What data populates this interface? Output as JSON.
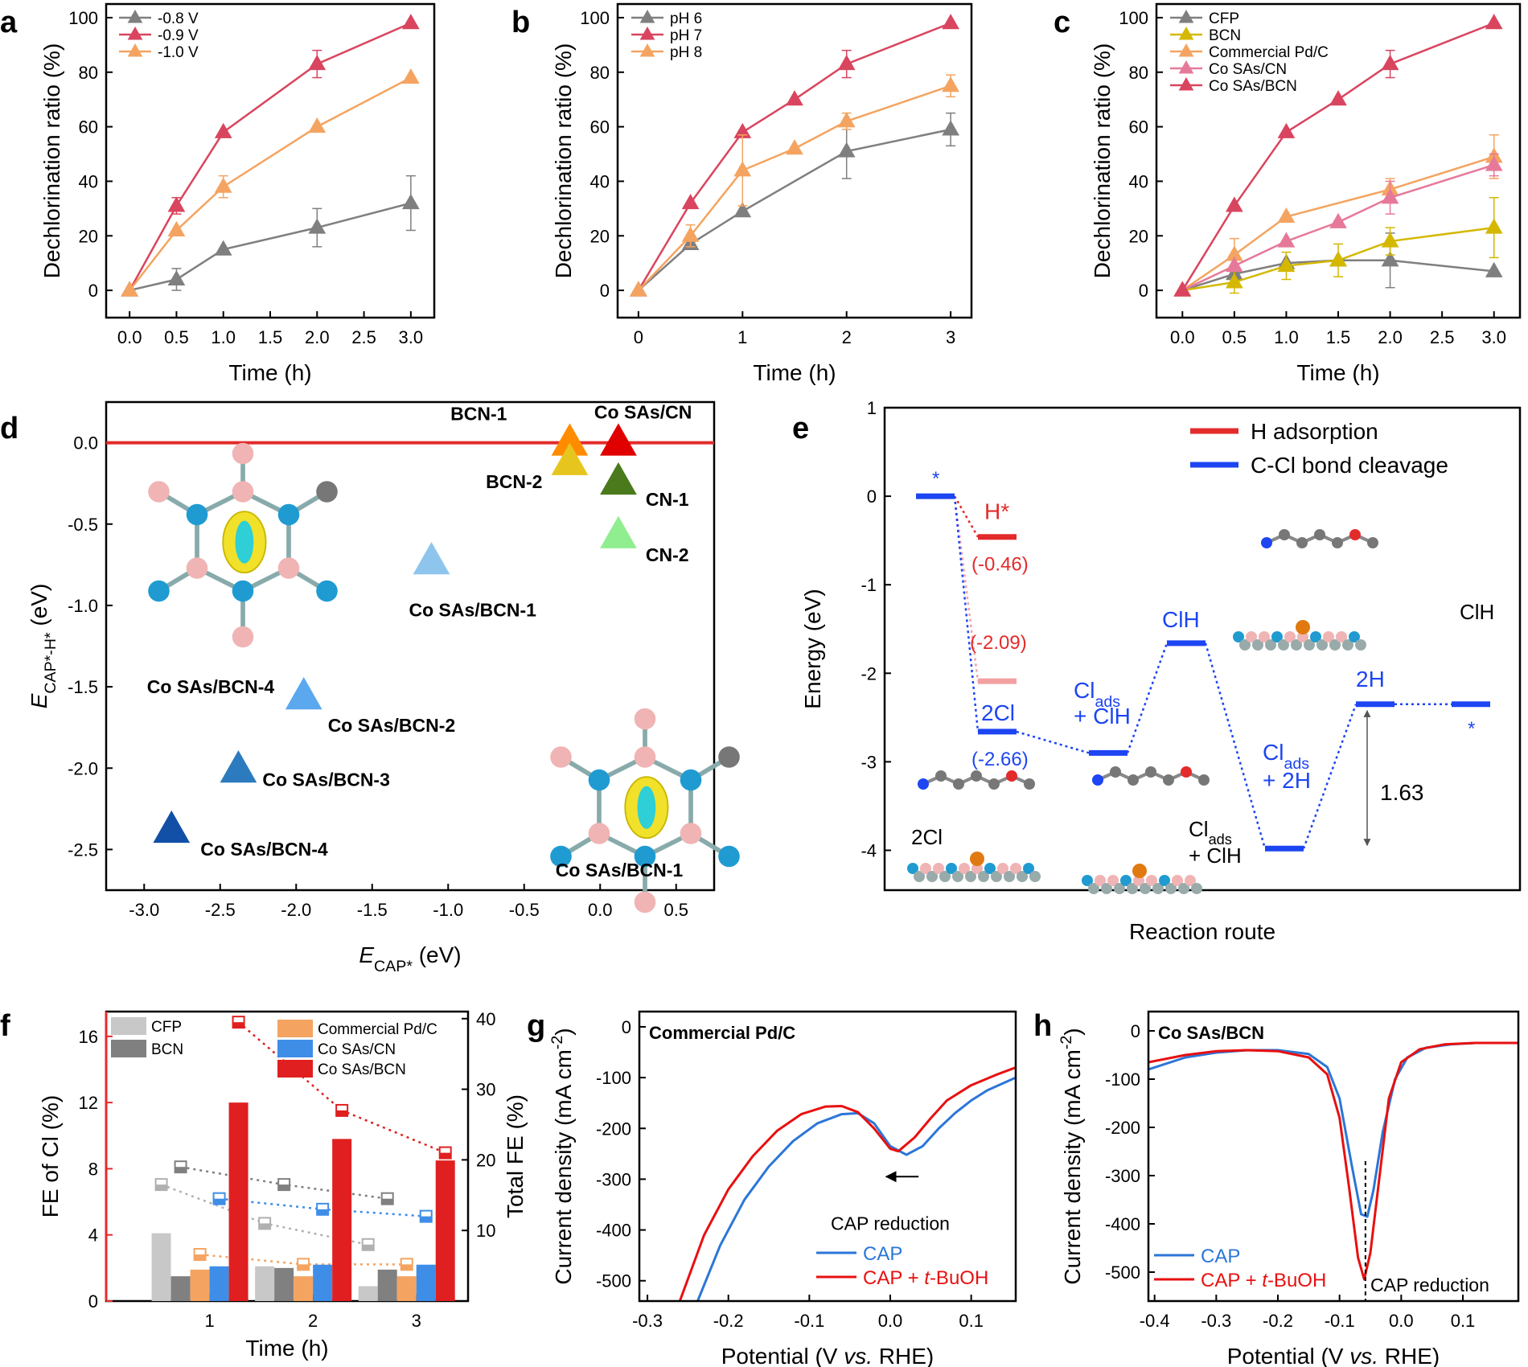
{
  "chart_data": [
    {
      "panel": "a",
      "type": "line",
      "xlabel": "Time (h)",
      "ylabel": "Dechlorination ratio (%)",
      "xlim": [
        -0.25,
        3.25
      ],
      "ylim": [
        -10,
        105
      ],
      "xticks": [
        0.0,
        0.5,
        1.0,
        1.5,
        2.0,
        2.5,
        3.0
      ],
      "xtick_labels": [
        "0.0",
        "0.5",
        "1.0",
        "1.5",
        "2.0",
        "2.5",
        "3.0"
      ],
      "yticks": [
        0,
        20,
        40,
        60,
        80,
        100
      ],
      "series": [
        {
          "name": "-0.8 V",
          "color": "#7f7f7f",
          "x": [
            0,
            0.5,
            1,
            2,
            3
          ],
          "values": [
            0,
            4,
            15,
            23,
            32
          ],
          "err": [
            0,
            4,
            0,
            7,
            10
          ]
        },
        {
          "name": "-0.9 V",
          "color": "#d9455f",
          "x": [
            0,
            0.5,
            1,
            2,
            3
          ],
          "values": [
            0,
            31,
            58,
            83,
            98
          ],
          "err": [
            0,
            3,
            0,
            5,
            0
          ]
        },
        {
          "name": "-1.0 V",
          "color": "#f4a460",
          "x": [
            0,
            0.5,
            1,
            2,
            3
          ],
          "values": [
            0,
            22,
            38,
            60,
            78
          ],
          "err": [
            0,
            0,
            4,
            0,
            0
          ]
        }
      ]
    },
    {
      "panel": "b",
      "type": "line",
      "xlabel": "Time (h)",
      "ylabel": "Dechlorination ratio (%)",
      "xlim": [
        -0.2,
        3.2
      ],
      "ylim": [
        -10,
        105
      ],
      "xticks": [
        0,
        1,
        2,
        3
      ],
      "xtick_labels": [
        "0",
        "1",
        "2",
        "3"
      ],
      "yticks": [
        0,
        20,
        40,
        60,
        80,
        100
      ],
      "series": [
        {
          "name": "pH 6",
          "color": "#7f7f7f",
          "x": [
            0,
            0.5,
            1,
            2,
            3
          ],
          "values": [
            0,
            17,
            29,
            51,
            59
          ],
          "err": [
            0,
            0,
            0,
            10,
            6
          ]
        },
        {
          "name": "pH 7",
          "color": "#d9455f",
          "x": [
            0,
            0.5,
            1,
            1.5,
            2,
            3
          ],
          "values": [
            0,
            32,
            58,
            70,
            83,
            98
          ],
          "err": [
            0,
            0,
            0,
            0,
            5,
            0
          ]
        },
        {
          "name": "pH 8",
          "color": "#f4a460",
          "x": [
            0,
            0.5,
            1,
            1.5,
            2,
            3
          ],
          "values": [
            0,
            20,
            44,
            52,
            62,
            75
          ],
          "err": [
            0,
            4,
            13,
            0,
            3,
            4
          ]
        }
      ]
    },
    {
      "panel": "c",
      "type": "line",
      "xlabel": "Time (h)",
      "ylabel": "Dechlorination ratio (%)",
      "xlim": [
        -0.25,
        3.25
      ],
      "ylim": [
        -10,
        105
      ],
      "xticks": [
        0.0,
        0.5,
        1.0,
        1.5,
        2.0,
        2.5,
        3.0
      ],
      "xtick_labels": [
        "0.0",
        "0.5",
        "1.0",
        "1.5",
        "2.0",
        "2.5",
        "3.0"
      ],
      "yticks": [
        0,
        20,
        40,
        60,
        80,
        100
      ],
      "series": [
        {
          "name": "CFP",
          "color": "#7f7f7f",
          "x": [
            0,
            0.5,
            1,
            1.5,
            2,
            3
          ],
          "values": [
            0,
            6,
            10,
            11,
            11,
            7
          ],
          "err": [
            0,
            0,
            0,
            0,
            10,
            0
          ]
        },
        {
          "name": "BCN",
          "color": "#d4b800",
          "x": [
            0,
            0.5,
            1,
            1.5,
            2,
            3
          ],
          "values": [
            0,
            3,
            9,
            11,
            18,
            23
          ],
          "err": [
            0,
            4,
            5,
            6,
            5,
            11
          ]
        },
        {
          "name": "Commercial Pd/C",
          "color": "#f4a460",
          "x": [
            0,
            0.5,
            1,
            2,
            3
          ],
          "values": [
            0,
            13,
            27,
            37,
            49
          ],
          "err": [
            0,
            6,
            0,
            4,
            8
          ]
        },
        {
          "name": "Co SAs/CN",
          "color": "#e6799a",
          "x": [
            0,
            0.5,
            1,
            1.5,
            2,
            3
          ],
          "values": [
            0,
            9,
            18,
            25,
            34,
            46
          ],
          "err": [
            0,
            0,
            0,
            0,
            6,
            4
          ]
        },
        {
          "name": "Co SAs/BCN",
          "color": "#d9455f",
          "x": [
            0,
            0.5,
            1,
            1.5,
            2,
            3
          ],
          "values": [
            0,
            31,
            58,
            70,
            83,
            98
          ],
          "err": [
            0,
            0,
            0,
            0,
            5,
            0
          ]
        }
      ]
    },
    {
      "panel": "d",
      "type": "scatter",
      "xlabel": "E_CAP* (eV)",
      "ylabel": "E_CAP*-H* (eV)",
      "xlim": [
        -3.25,
        0.75
      ],
      "ylim": [
        -2.75,
        0.25
      ],
      "xticks": [
        -3.0,
        -2.5,
        -2.0,
        -1.5,
        -1.0,
        -0.5,
        0.0,
        0.5
      ],
      "xtick_labels": [
        "-3.0",
        "-2.5",
        "-2.0",
        "-1.5",
        "-1.0",
        "-0.5",
        "0.0",
        "0.5"
      ],
      "yticks": [
        0.0,
        -0.5,
        -1.0,
        -1.5,
        -2.0,
        -2.5
      ],
      "ytick_labels": [
        "0.0",
        "-0.5",
        "-1.0",
        "-1.5",
        "-2.0",
        "-2.5"
      ],
      "reference_line": 0,
      "points": [
        {
          "name": "BCN-1",
          "x": -0.2,
          "y": 0.0,
          "color": "#ff8c00"
        },
        {
          "name": "Co SAs/CN",
          "x": 0.12,
          "y": 0.0,
          "color": "#e00000"
        },
        {
          "name": "BCN-2",
          "x": -0.2,
          "y": -0.12,
          "color": "#e6c61e"
        },
        {
          "name": "CN-1",
          "x": 0.12,
          "y": -0.24,
          "color": "#4a7a1c"
        },
        {
          "name": "CN-2",
          "x": 0.12,
          "y": -0.57,
          "color": "#90ee90"
        },
        {
          "name": "Co SAs/BCN-1",
          "x": -1.11,
          "y": -0.73,
          "color": "#8ec5ec"
        },
        {
          "name": "Co SAs/BCN-2",
          "x": -1.95,
          "y": -1.56,
          "color": "#5ca8ee"
        },
        {
          "name": "Co SAs/BCN-3",
          "x": -2.38,
          "y": -2.01,
          "color": "#2c7bbf"
        },
        {
          "name": "Co SAs/BCN-4",
          "x": -2.82,
          "y": -2.38,
          "color": "#1250a8"
        }
      ],
      "inset_labels": [
        "Co SAs/BCN-4",
        "Co SAs/BCN-1"
      ]
    },
    {
      "panel": "e",
      "type": "energy_diagram",
      "xlabel": "Reaction route",
      "ylabel": "Energy (eV)",
      "ylim": [
        -4.45,
        1.0
      ],
      "yticks": [
        1,
        0,
        -1,
        -2,
        -3,
        -4
      ],
      "legend": [
        {
          "name": "H adsorption",
          "color": "#e32b2b"
        },
        {
          "name": "C-Cl bond cleavage",
          "color": "#1d45f2"
        }
      ],
      "levels": [
        {
          "label": "*",
          "x": 0,
          "y": 0.0,
          "color": "#1d45f2"
        },
        {
          "label": "H*",
          "value_label": "(-0.46)",
          "x": 1,
          "y": -0.46,
          "color": "#e32b2b"
        },
        {
          "label": "",
          "value_label": "(-2.09)",
          "x": 1,
          "y": -2.09,
          "color": "#f2a0a0"
        },
        {
          "label": "2Cl",
          "value_label": "(-2.66)",
          "x": 1,
          "y": -2.66,
          "color": "#1d45f2"
        },
        {
          "label": "Clads + ClH",
          "x": 2,
          "y": -2.9,
          "color": "#1d45f2"
        },
        {
          "label": "ClH",
          "x": 3,
          "y": -1.66,
          "color": "#1d45f2"
        },
        {
          "label": "Clads + 2H",
          "x": 4,
          "y": -3.98,
          "color": "#1d45f2"
        },
        {
          "label": "2H",
          "x": 5,
          "y": -2.35,
          "color": "#1d45f2"
        },
        {
          "label": "*",
          "x": 6,
          "y": -2.35,
          "color": "#1d45f2"
        }
      ],
      "barrier_label": "1.63",
      "structure_labels": [
        "2Cl",
        "Clads + ClH",
        "ClH"
      ]
    },
    {
      "panel": "f",
      "type": "bar",
      "xlabel": "Time (h)",
      "ylabel": "FE of Cl (%)",
      "ylabel_right": "Total FE (%)",
      "categories": [
        "1",
        "2",
        "3"
      ],
      "ylim": [
        0,
        17.5
      ],
      "ylim_right": [
        0,
        41
      ],
      "yticks": [
        0,
        4,
        8,
        12,
        16
      ],
      "yticks_right": [
        10,
        20,
        30,
        40
      ],
      "series": [
        {
          "name": "CFP",
          "color": "#c8c8c8",
          "values": [
            4.1,
            2.1,
            0.9
          ],
          "total_fe": [
            16.5,
            11,
            8
          ]
        },
        {
          "name": "BCN",
          "color": "#808080",
          "values": [
            1.5,
            2.0,
            1.9
          ],
          "total_fe": [
            19,
            16.5,
            14.5
          ]
        },
        {
          "name": "Commercial Pd/C",
          "color": "#f4a460",
          "values": [
            1.9,
            1.5,
            1.5
          ],
          "total_fe": [
            6.6,
            5.2,
            5.2
          ]
        },
        {
          "name": "Co SAs/CN",
          "color": "#3e8ee8",
          "values": [
            2.1,
            2.2,
            2.2
          ],
          "total_fe": [
            14.5,
            13,
            12
          ]
        },
        {
          "name": "Co SAs/BCN",
          "color": "#e02020",
          "values": [
            12.0,
            9.8,
            8.5
          ],
          "total_fe": [
            39.5,
            27,
            21
          ]
        }
      ]
    },
    {
      "panel": "g",
      "type": "line",
      "title": "Commercial Pd/C",
      "xlabel": "Potential (V vs. RHE)",
      "ylabel": "Current density (mA cm-2)",
      "xlim": [
        -0.31,
        0.155
      ],
      "ylim": [
        -540,
        30
      ],
      "xticks": [
        -0.3,
        -0.2,
        -0.1,
        0.0,
        0.1
      ],
      "xtick_labels": [
        "-0.3",
        "-0.2",
        "-0.1",
        "0.0",
        "0.1"
      ],
      "yticks": [
        0,
        -100,
        -200,
        -300,
        -400,
        -500
      ],
      "ytick_labels": [
        "0",
        "-100",
        "-200",
        "-300",
        "-400",
        "-500"
      ],
      "annotation": "CAP reduction",
      "series": [
        {
          "name": "CAP",
          "color": "#2b76d8",
          "x": [
            -0.238,
            -0.21,
            -0.18,
            -0.15,
            -0.12,
            -0.09,
            -0.06,
            -0.04,
            -0.02,
            0.0,
            0.02,
            0.04,
            0.06,
            0.08,
            0.1,
            0.12,
            0.155
          ],
          "values": [
            -540,
            -430,
            -340,
            -275,
            -225,
            -190,
            -172,
            -170,
            -190,
            -235,
            -252,
            -235,
            -200,
            -170,
            -145,
            -125,
            -100
          ]
        },
        {
          "name": "CAP + t-BuOH",
          "color": "#e81010",
          "x": [
            -0.26,
            -0.23,
            -0.2,
            -0.17,
            -0.14,
            -0.11,
            -0.08,
            -0.06,
            -0.04,
            -0.02,
            0.0,
            0.01,
            0.03,
            0.05,
            0.07,
            0.1,
            0.13,
            0.155
          ],
          "values": [
            -540,
            -410,
            -320,
            -255,
            -205,
            -172,
            -157,
            -156,
            -168,
            -200,
            -240,
            -245,
            -218,
            -180,
            -145,
            -115,
            -95,
            -80
          ]
        }
      ]
    },
    {
      "panel": "h",
      "type": "line",
      "title": "Co SAs/BCN",
      "xlabel": "Potential (V vs. RHE)",
      "ylabel": "Current density (mA cm-2)",
      "xlim": [
        -0.41,
        0.19
      ],
      "ylim": [
        -560,
        40
      ],
      "xticks": [
        -0.4,
        -0.3,
        -0.2,
        -0.1,
        0.0,
        0.1
      ],
      "xtick_labels": [
        "-0.4",
        "-0.3",
        "-0.2",
        "-0.1",
        "0.0",
        "0.1"
      ],
      "yticks": [
        0,
        -100,
        -200,
        -300,
        -400,
        -500
      ],
      "ytick_labels": [
        "0",
        "-100",
        "-200",
        "-300",
        "-400",
        "-500"
      ],
      "annotation": "CAP reduction",
      "series": [
        {
          "name": "CAP",
          "color": "#2b76d8",
          "x": [
            -0.41,
            -0.35,
            -0.3,
            -0.25,
            -0.2,
            -0.15,
            -0.12,
            -0.1,
            -0.08,
            -0.065,
            -0.055,
            -0.045,
            -0.03,
            -0.01,
            0.01,
            0.04,
            0.08,
            0.12,
            0.19
          ],
          "values": [
            -80,
            -55,
            -45,
            -40,
            -40,
            -48,
            -75,
            -140,
            -280,
            -380,
            -385,
            -330,
            -210,
            -100,
            -55,
            -35,
            -28,
            -25,
            -25
          ]
        },
        {
          "name": "CAP + t-BuOH",
          "color": "#e81010",
          "x": [
            -0.41,
            -0.35,
            -0.3,
            -0.25,
            -0.2,
            -0.15,
            -0.12,
            -0.1,
            -0.085,
            -0.07,
            -0.06,
            -0.05,
            -0.035,
            -0.02,
            0.0,
            0.03,
            0.07,
            0.12,
            0.19
          ],
          "values": [
            -65,
            -50,
            -42,
            -40,
            -42,
            -55,
            -90,
            -180,
            -320,
            -470,
            -515,
            -460,
            -300,
            -140,
            -65,
            -38,
            -28,
            -25,
            -25
          ]
        }
      ]
    }
  ]
}
